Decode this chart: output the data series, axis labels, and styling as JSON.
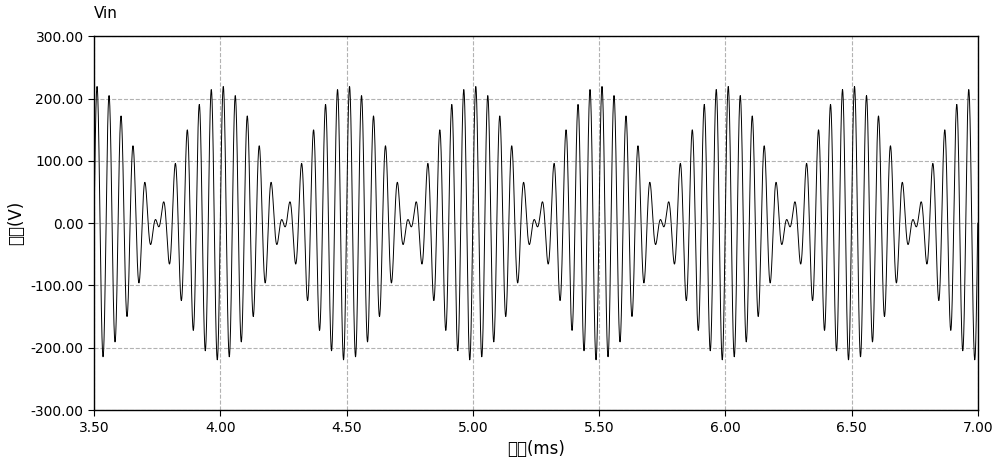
{
  "title": "Vin",
  "xlabel": "时间(ms)",
  "ylabel": "电压(V)",
  "xlim": [
    3.5,
    7.0
  ],
  "ylim": [
    -300.0,
    300.0
  ],
  "xticks": [
    3.5,
    4.0,
    4.5,
    5.0,
    5.5,
    6.0,
    6.5,
    7.0
  ],
  "yticks": [
    -300.0,
    -200.0,
    -100.0,
    0.0,
    100.0,
    200.0,
    300.0
  ],
  "xticklabels": [
    "3.50",
    "4.00",
    "4.50",
    "5.00",
    "5.50",
    "6.00",
    "6.50",
    "7.00"
  ],
  "yticklabels": [
    "-300.00",
    "-200.00",
    "-100.00",
    "0.00",
    "100.00",
    "200.00",
    "300.00"
  ],
  "grid_color": "#aaaaaa",
  "line_color": "#000000",
  "bg_color": "#ffffff",
  "plot_bg_color": "#ffffff",
  "f1_hz": 20000,
  "f2_hz": 22000,
  "amplitude": 220,
  "t_start_ms": 3.5,
  "t_end_ms": 7.0,
  "title_fontsize": 11,
  "label_fontsize": 12,
  "tick_fontsize": 10
}
